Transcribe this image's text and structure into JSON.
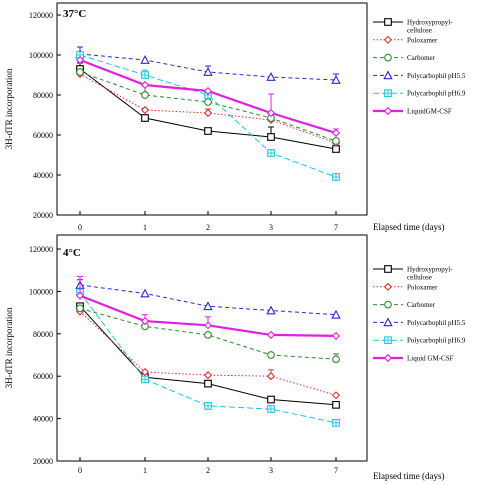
{
  "chart_data": [
    {
      "type": "line",
      "title": "37°C",
      "xlabel": "Elapsed time (days)",
      "ylabel": "3H-dTR incorporation",
      "x": [
        0,
        1,
        2,
        3,
        7
      ],
      "x_tick_labels": [
        "0",
        "1",
        "2",
        "3",
        "7"
      ],
      "ylim": [
        20000,
        120000
      ],
      "y_ticks": [
        20000,
        40000,
        60000,
        80000,
        100000,
        120000
      ],
      "y_tick_labels": [
        "20000",
        "40000",
        "60000",
        "80000",
        "100000",
        "120000"
      ],
      "legend_position": "right",
      "series": [
        {
          "name_lines": [
            "Hydroxypropyl-",
            "cellulose"
          ],
          "color": "#000000",
          "marker": "square",
          "dash": "solid",
          "width": 1,
          "values": [
            93000,
            68500,
            62000,
            59000,
            53000
          ],
          "errors": [
            3000,
            0,
            0,
            5000,
            1500
          ]
        },
        {
          "name_lines": [
            "Poloxamer"
          ],
          "color": "#e03030",
          "marker": "diamond",
          "dash": "dot",
          "width": 1,
          "values": [
            90500,
            72500,
            71000,
            67500,
            56000
          ],
          "errors": [
            1500,
            0,
            2000,
            0,
            0
          ]
        },
        {
          "name_lines": [
            "Carbomer"
          ],
          "color": "#2e8b2e",
          "marker": "circle",
          "dash": "dash",
          "width": 1,
          "values": [
            91500,
            80000,
            76500,
            68500,
            57000
          ],
          "errors": [
            0,
            4500,
            3000,
            0,
            0
          ]
        },
        {
          "name_lines": [
            "Polycarbophil pH5.5"
          ],
          "color": "#2a2ad0",
          "marker": "triangle",
          "dash": "dash",
          "width": 1,
          "values": [
            100500,
            97500,
            91500,
            89000,
            87500
          ],
          "errors": [
            3500,
            0,
            3000,
            0,
            3000
          ]
        },
        {
          "name_lines": [
            "Polycarbophil pH6.9"
          ],
          "color": "#22c4e0",
          "marker": "boxplus",
          "dash": "longdash",
          "width": 1,
          "values": [
            100000,
            90000,
            80000,
            51000,
            39000
          ],
          "errors": [
            0,
            2500,
            0,
            0,
            0
          ]
        },
        {
          "name_lines": [
            "LiquidGM-CSF"
          ],
          "color": "#e020e0",
          "marker": "diamond",
          "dash": "solid",
          "width": 2.2,
          "values": [
            97500,
            85000,
            82000,
            71000,
            61000
          ],
          "errors": [
            0,
            0,
            0,
            9500,
            2000
          ]
        }
      ]
    },
    {
      "type": "line",
      "title": "4°C",
      "xlabel": "Elapsed time (days)",
      "ylabel": "3H-dTR incorporation",
      "x": [
        0,
        1,
        2,
        3,
        7
      ],
      "x_tick_labels": [
        "0",
        "1",
        "2",
        "3",
        "7"
      ],
      "ylim": [
        20000,
        120000
      ],
      "y_ticks": [
        20000,
        40000,
        60000,
        80000,
        100000,
        120000
      ],
      "y_tick_labels": [
        "20000",
        "40000",
        "60000",
        "80000",
        "100000",
        "120000"
      ],
      "legend_position": "right",
      "series": [
        {
          "name_lines": [
            "Hydroxypropyl-",
            "cellulose"
          ],
          "color": "#000000",
          "marker": "square",
          "dash": "solid",
          "width": 1,
          "values": [
            93000,
            59500,
            56500,
            49000,
            46500
          ],
          "errors": [
            0,
            0,
            0,
            0,
            0
          ]
        },
        {
          "name_lines": [
            "Poloxamer"
          ],
          "color": "#e03030",
          "marker": "diamond",
          "dash": "dot",
          "width": 1,
          "values": [
            90500,
            62000,
            60500,
            60000,
            51000
          ],
          "errors": [
            2000,
            0,
            0,
            3000,
            0
          ]
        },
        {
          "name_lines": [
            "Carbomer"
          ],
          "color": "#2e8b2e",
          "marker": "circle",
          "dash": "dash",
          "width": 1,
          "values": [
            92000,
            83500,
            79500,
            70000,
            68000
          ],
          "errors": [
            0,
            2500,
            0,
            0,
            2500
          ]
        },
        {
          "name_lines": [
            "Polycarbophil pH5.5"
          ],
          "color": "#2a2ad0",
          "marker": "triangle",
          "dash": "dash",
          "width": 1,
          "values": [
            103000,
            99000,
            93000,
            91000,
            89000
          ],
          "errors": [
            2500,
            0,
            0,
            0,
            0
          ]
        },
        {
          "name_lines": [
            "Polycarbophil  pH6.9"
          ],
          "color": "#22c4e0",
          "marker": "boxplus",
          "dash": "longdash",
          "width": 1,
          "values": [
            99500,
            58500,
            46000,
            44500,
            38000
          ],
          "errors": [
            0,
            0,
            0,
            0,
            0
          ]
        },
        {
          "name_lines": [
            "Liquid GM-CSF"
          ],
          "color": "#e020e0",
          "marker": "diamond",
          "dash": "solid",
          "width": 2.2,
          "values": [
            98000,
            86000,
            84000,
            79500,
            79000
          ],
          "errors": [
            9000,
            3000,
            4000,
            0,
            0
          ]
        }
      ]
    }
  ]
}
